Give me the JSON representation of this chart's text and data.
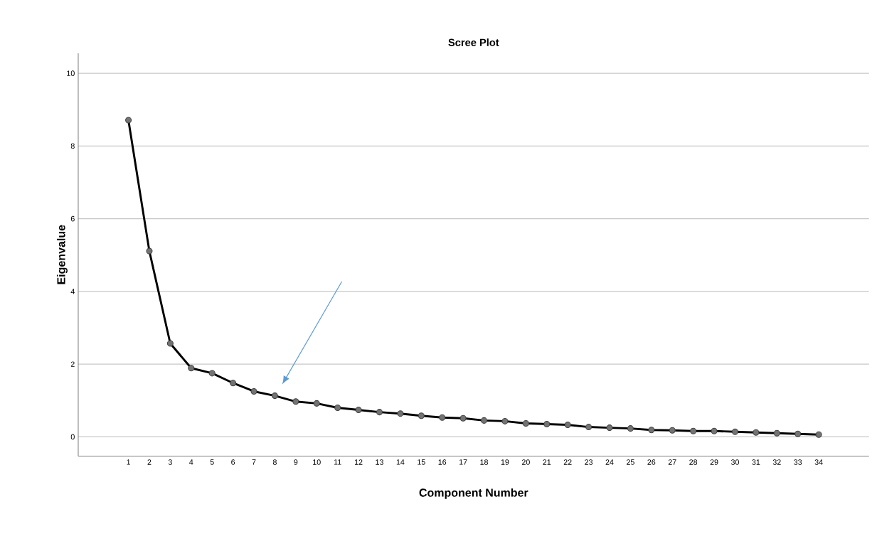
{
  "chart_data": {
    "type": "line",
    "title": "Scree Plot",
    "xlabel": "Component Number",
    "ylabel": "Eigenvalue",
    "categories": [
      "1",
      "2",
      "3",
      "4",
      "5",
      "6",
      "7",
      "8",
      "9",
      "10",
      "11",
      "12",
      "13",
      "14",
      "15",
      "16",
      "17",
      "18",
      "19",
      "20",
      "21",
      "22",
      "23",
      "24",
      "25",
      "26",
      "27",
      "28",
      "29",
      "30",
      "31",
      "32",
      "33",
      "34"
    ],
    "values": [
      8.71,
      5.11,
      2.57,
      1.89,
      1.75,
      1.48,
      1.25,
      1.13,
      0.97,
      0.92,
      0.8,
      0.74,
      0.68,
      0.64,
      0.58,
      0.53,
      0.51,
      0.45,
      0.43,
      0.37,
      0.35,
      0.33,
      0.27,
      0.25,
      0.23,
      0.19,
      0.18,
      0.16,
      0.16,
      0.14,
      0.12,
      0.1,
      0.08,
      0.06
    ],
    "color": "#000000",
    "ylim": [
      -0.53,
      10.55
    ],
    "yticks": [
      0,
      2,
      4,
      6,
      8,
      10
    ],
    "grid": "y",
    "marker": "circle",
    "line_style": "solid"
  }
}
